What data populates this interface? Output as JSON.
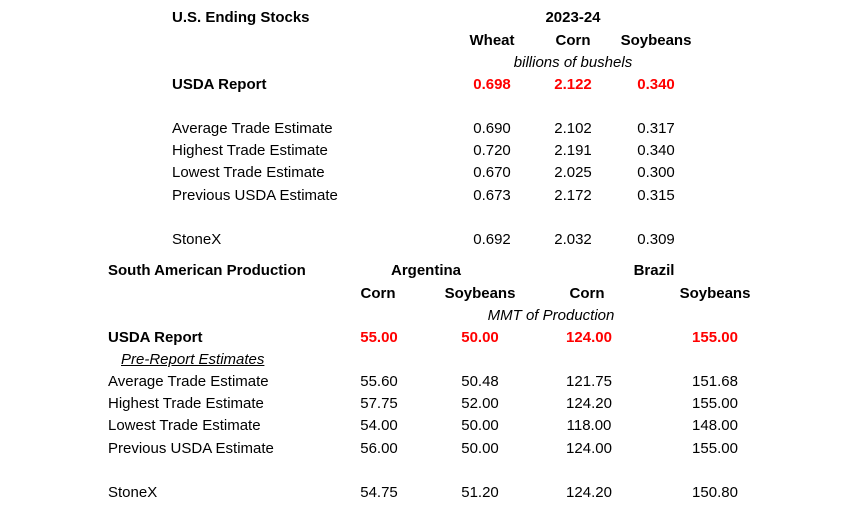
{
  "us": {
    "title": "U.S. Ending Stocks",
    "year": "2023-24",
    "headers": [
      "Wheat",
      "Corn",
      "Soybeans"
    ],
    "unit": "billions of bushels",
    "usda": {
      "label": "USDA Report",
      "values": [
        "0.698",
        "2.122",
        "0.340"
      ]
    },
    "rows": [
      {
        "label": "Average Trade Estimate",
        "values": [
          "0.690",
          "2.102",
          "0.317"
        ]
      },
      {
        "label": "Highest Trade Estimate",
        "values": [
          "0.720",
          "2.191",
          "0.340"
        ]
      },
      {
        "label": "Lowest Trade Estimate",
        "values": [
          "0.670",
          "2.025",
          "0.300"
        ]
      },
      {
        "label": "Previous USDA Estimate",
        "values": [
          "0.673",
          "2.172",
          "0.315"
        ]
      }
    ],
    "stonex": {
      "label": "StoneX",
      "values": [
        "0.692",
        "2.032",
        "0.309"
      ]
    }
  },
  "sa": {
    "title": "South American Production",
    "country1": "Argentina",
    "country2": "Brazil",
    "headers": [
      "Corn",
      "Soybeans",
      "Corn",
      "Soybeans"
    ],
    "unit": "MMT of Production",
    "usda": {
      "label": "USDA Report",
      "values": [
        "55.00",
        "50.00",
        "124.00",
        "155.00"
      ]
    },
    "pre_report_label": "Pre-Report Estimates",
    "rows": [
      {
        "label": "Average Trade Estimate",
        "values": [
          "55.60",
          "50.48",
          "121.75",
          "151.68"
        ]
      },
      {
        "label": "Highest Trade Estimate",
        "values": [
          "57.75",
          "52.00",
          "124.20",
          "155.00"
        ]
      },
      {
        "label": "Lowest Trade Estimate",
        "values": [
          "54.00",
          "50.00",
          "118.00",
          "148.00"
        ]
      },
      {
        "label": "Previous USDA Estimate",
        "values": [
          "56.00",
          "50.00",
          "124.00",
          "155.00"
        ]
      }
    ],
    "stonex": {
      "label": "StoneX",
      "values": [
        "54.75",
        "51.20",
        "124.20",
        "150.80"
      ]
    }
  }
}
